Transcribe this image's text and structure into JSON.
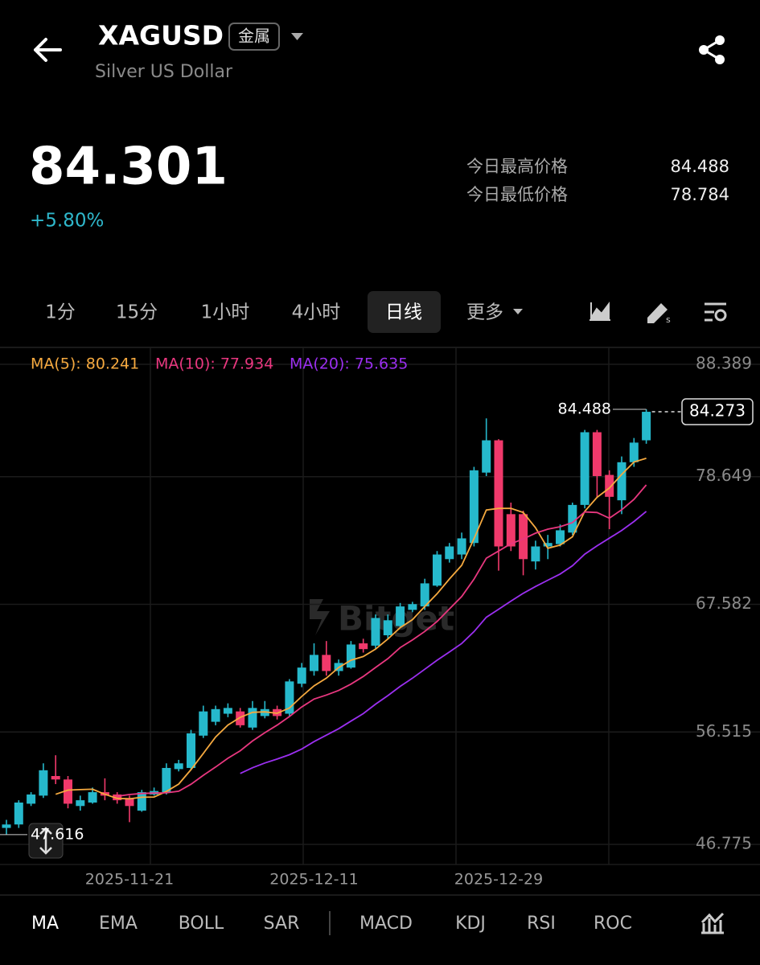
{
  "header": {
    "symbol": "XAGUSD",
    "badge": "金属",
    "subtitle": "Silver US Dollar"
  },
  "quote": {
    "price": 84.301,
    "change": "+5.80%",
    "high_label": "今日最高价格",
    "high": 84.488,
    "low_label": "今日最低价格",
    "low": 78.784
  },
  "timeframes": [
    "1分",
    "15分",
    "1小时",
    "4小时",
    "日线",
    "更多"
  ],
  "active_timeframe": 4,
  "chart_data": {
    "type": "candlestick",
    "categories": [
      null,
      null,
      null,
      null,
      null,
      null,
      null,
      null,
      null,
      null,
      "2025-11-21",
      null,
      null,
      null,
      null,
      null,
      null,
      null,
      null,
      null,
      null,
      null,
      null,
      null,
      null,
      "2025-12-11",
      null,
      null,
      null,
      null,
      null,
      null,
      null,
      null,
      null,
      null,
      null,
      null,
      null,
      null,
      "2025-12-29",
      null,
      null,
      null,
      null,
      null,
      null,
      null,
      null,
      null,
      null,
      null,
      null
    ],
    "open": [
      48.2,
      48.5,
      50.3,
      51.0,
      52.7,
      52.4,
      50.1,
      50.4,
      51.3,
      51.1,
      50.8,
      49.7,
      51.1,
      51.3,
      53.3,
      53.4,
      56.2,
      57.4,
      58.1,
      58.3,
      56.9,
      57.9,
      58.5,
      58.1,
      60.7,
      61.8,
      63.2,
      61.8,
      62.1,
      64.2,
      64.0,
      64.9,
      65.7,
      67.1,
      67.4,
      69.2,
      71.5,
      71.9,
      72.9,
      79.0,
      81.8,
      75.4,
      75.4,
      71.3,
      72.6,
      72.8,
      73.8,
      76.2,
      82.5,
      78.8,
      76.6,
      79.9,
      81.8
    ],
    "high": [
      48.9,
      50.6,
      51.3,
      53.8,
      54.5,
      52.7,
      51.0,
      51.7,
      52.5,
      51.3,
      51.0,
      51.5,
      51.7,
      53.8,
      54.1,
      56.7,
      58.8,
      58.8,
      59.0,
      58.6,
      59.2,
      59.2,
      58.8,
      61.1,
      62.5,
      64.2,
      64.4,
      62.8,
      64.4,
      64.6,
      66.7,
      66.7,
      67.7,
      67.8,
      69.8,
      72.2,
      72.9,
      73.8,
      79.5,
      83.7,
      81.9,
      76.4,
      75.7,
      73.1,
      73.6,
      74.5,
      76.4,
      82.7,
      82.7,
      79.2,
      80.4,
      82.0,
      84.488
    ],
    "low": [
      47.616,
      48.2,
      50.1,
      50.8,
      52.0,
      49.9,
      49.7,
      50.3,
      50.6,
      50.3,
      48.7,
      49.6,
      51.0,
      51.1,
      53.1,
      53.2,
      56.0,
      57.1,
      57.8,
      56.9,
      56.7,
      57.7,
      57.6,
      57.9,
      60.4,
      61.4,
      61.4,
      61.4,
      62.0,
      63.4,
      63.7,
      64.6,
      65.6,
      66.9,
      67.1,
      69.1,
      71.2,
      71.5,
      72.6,
      78.7,
      70.5,
      72.2,
      70.1,
      70.6,
      71.5,
      72.6,
      73.6,
      75.9,
      76.8,
      74.1,
      75.4,
      79.5,
      81.5
    ],
    "close": [
      48.5,
      50.4,
      51.1,
      53.2,
      52.4,
      50.3,
      50.6,
      51.3,
      51.0,
      50.6,
      50.1,
      51.3,
      51.4,
      53.4,
      53.8,
      56.4,
      58.3,
      58.5,
      58.6,
      57.1,
      58.6,
      58.5,
      57.9,
      60.9,
      62.1,
      63.2,
      61.8,
      62.5,
      64.1,
      63.7,
      66.4,
      66.2,
      67.4,
      67.6,
      69.4,
      71.9,
      72.6,
      73.3,
      79.2,
      81.8,
      72.6,
      72.6,
      71.5,
      72.6,
      72.9,
      74.0,
      76.2,
      82.5,
      78.7,
      76.9,
      79.9,
      81.6,
      84.273
    ],
    "up_color": "#26b9cc",
    "down_color": "#f0396b",
    "series": [
      {
        "name": "MA(5): 80.241",
        "color": "#f5a93f",
        "values": [
          null,
          null,
          null,
          null,
          51.12,
          51.48,
          51.52,
          51.56,
          51.12,
          50.76,
          50.72,
          50.86,
          50.88,
          51.36,
          52.0,
          53.26,
          54.66,
          56.08,
          57.12,
          57.78,
          58.22,
          58.26,
          58.14,
          58.6,
          59.6,
          60.52,
          61.18,
          62.1,
          62.74,
          63.06,
          63.7,
          64.58,
          65.56,
          66.26,
          67.4,
          68.5,
          69.78,
          70.96,
          73.28,
          75.76,
          75.9,
          75.9,
          75.54,
          74.22,
          72.44,
          72.72,
          73.44,
          75.64,
          76.86,
          77.66,
          78.84,
          79.92,
          80.24
        ]
      },
      {
        "name": "MA(10): 77.934",
        "color": "#e8377f",
        "values": [
          null,
          null,
          null,
          null,
          null,
          null,
          null,
          null,
          null,
          50.94,
          51.1,
          51.19,
          51.22,
          51.24,
          51.38,
          51.99,
          52.76,
          53.48,
          54.24,
          54.89,
          55.74,
          56.46,
          57.11,
          57.86,
          58.69,
          59.37,
          59.72,
          60.12,
          60.67,
          61.33,
          62.11,
          62.88,
          63.83,
          64.5,
          65.23,
          66.1,
          67.18,
          68.26,
          69.77,
          71.58,
          72.2,
          72.84,
          73.25,
          73.75,
          74.1,
          74.31,
          74.67,
          75.59,
          75.54,
          75.05,
          75.78,
          76.68,
          77.93
        ]
      },
      {
        "name": "MA(20): 75.635",
        "color": "#9b2ff0",
        "values": [
          null,
          null,
          null,
          null,
          null,
          null,
          null,
          null,
          null,
          null,
          null,
          null,
          null,
          null,
          null,
          null,
          null,
          null,
          null,
          52.92,
          53.42,
          53.83,
          54.17,
          54.55,
          55.04,
          55.68,
          56.24,
          56.8,
          57.46,
          58.11,
          58.93,
          59.67,
          60.47,
          61.18,
          61.96,
          62.74,
          63.45,
          64.19,
          65.22,
          66.46,
          67.16,
          67.86,
          68.54,
          69.13,
          69.67,
          70.21,
          70.93,
          71.93,
          72.66,
          73.32,
          73.99,
          74.76,
          75.64
        ]
      }
    ],
    "ylim": [
      46.775,
      88.389
    ],
    "yticks": [
      88.389,
      78.649,
      67.582,
      56.515,
      46.775
    ],
    "grid": true,
    "last_price": 84.273,
    "max_label": 84.488,
    "min_label": 47.616,
    "watermark": "Bitget"
  },
  "indicators": [
    "MA",
    "EMA",
    "BOLL",
    "SAR",
    "MACD",
    "KDJ",
    "RSI",
    "ROC"
  ],
  "active_indicator": 0
}
